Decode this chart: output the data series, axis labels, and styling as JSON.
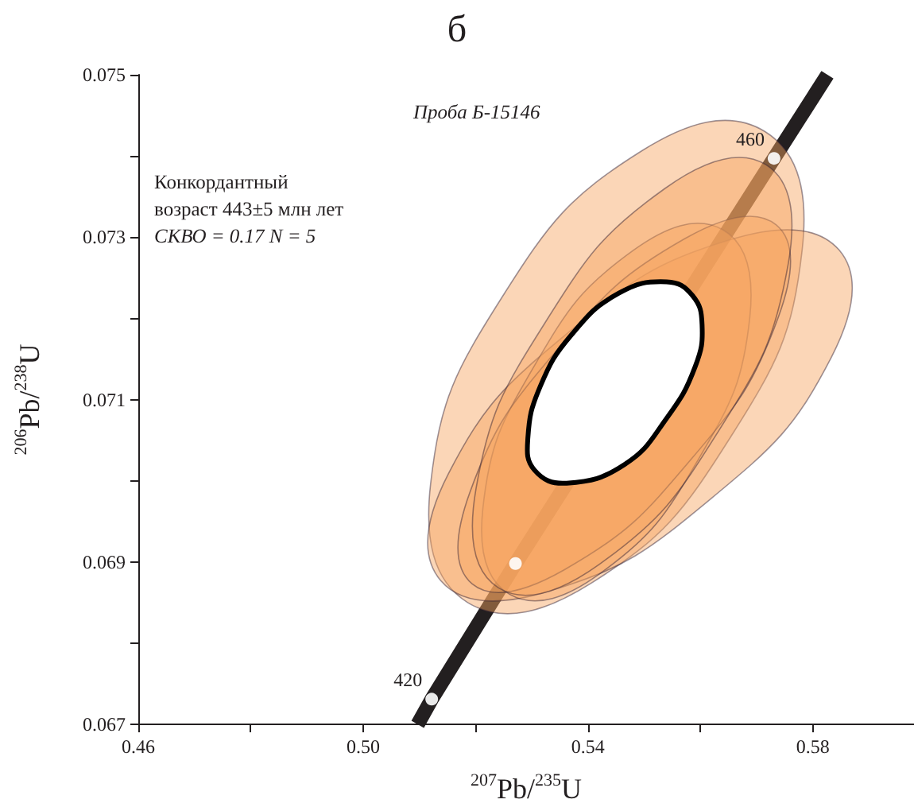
{
  "chart_data": {
    "type": "line",
    "title": "б",
    "xlabel": "$^{207}$Pb/$^{235}$U",
    "ylabel": "$^{206}$Pb/$^{238}$U",
    "annotations": [
      "Проба Б-15146",
      "Конкордантный\nвозраст 443±5 млн лет",
      "СКВО = 0.17 N = 5",
      {
        "text": "420",
        "x": 0.5122,
        "y": 0.06731
      },
      {
        "text": "460",
        "x": 0.5731,
        "y": 0.07397
      }
    ],
    "xlim": [
      0.46,
      0.598
    ],
    "ylim": [
      0.067,
      0.075
    ],
    "xticks": [
      0.46,
      {
        "value": 0.48,
        "label": null
      },
      {
        "value": 0.5,
        "label": "0.50"
      },
      {
        "value": 0.52,
        "label": null
      },
      0.54,
      {
        "value": 0.56,
        "label": null
      },
      0.58
    ],
    "yticks": [
      0.067,
      {
        "value": 0.068,
        "label": null
      },
      0.069,
      {
        "value": 0.07,
        "label": null
      },
      0.071,
      {
        "value": 0.072,
        "label": null
      },
      0.073,
      {
        "value": 0.074,
        "label": null
      },
      0.075
    ],
    "grid": false,
    "series": [
      {
        "color": "#231f20",
        "marker": "none",
        "x": [
          0.5097,
          0.5122,
          0.5271,
          0.5731,
          0.5826
        ],
        "values": [
          0.067,
          0.06731,
          0.06898,
          0.07397,
          0.075
        ]
      },
      {
        "type": "area",
        "color": "#f6a560",
        "x": [
          0.5715,
          0.5781,
          0.5653,
          0.5406,
          0.5186,
          0.512,
          0.5248,
          0.5495
        ],
        "values": [
          0.0743,
          0.07284,
          0.07053,
          0.06874,
          0.0685,
          0.06996,
          0.07227,
          0.07406
        ]
      },
      {
        "type": "area",
        "color": "#f6a560",
        "x": [
          0.5847,
          0.5833,
          0.5619,
          0.5331,
          0.5138,
          0.5152,
          0.5366,
          0.5654
        ],
        "values": [
          0.07284,
          0.07152,
          0.06978,
          0.06864,
          0.06877,
          0.07009,
          0.07183,
          0.07297
        ]
      },
      {
        "type": "area",
        "color": "#f6a560",
        "x": [
          0.564,
          0.5688,
          0.5597,
          0.542,
          0.5261,
          0.5213,
          0.5305,
          0.5481
        ],
        "values": [
          0.07309,
          0.07202,
          0.07027,
          0.06885,
          0.0686,
          0.06966,
          0.07142,
          0.07284
        ]
      },
      {
        "type": "area",
        "color": "#f6a560",
        "x": [
          0.5735,
          0.5739,
          0.5583,
          0.5357,
          0.5194,
          0.519,
          0.5346,
          0.5572
        ],
        "values": [
          0.07315,
          0.07202,
          0.07026,
          0.0689,
          0.06873,
          0.06986,
          0.07162,
          0.07298
        ]
      },
      {
        "type": "area",
        "color": "#f6a560",
        "x": [
          0.5717,
          0.5756,
          0.5633,
          0.542,
          0.5241,
          0.5201,
          0.5324,
          0.5537
        ],
        "values": [
          0.07389,
          0.07266,
          0.07062,
          0.06897,
          0.06868,
          0.06991,
          0.07195,
          0.0736
        ]
      },
      {
        "type": "area",
        "color": "#ffffff",
        "x": [
          0.554,
          0.5586,
          0.5603,
          0.5591,
          0.554,
          0.5465,
          0.5362,
          0.5305,
          0.5293,
          0.5315,
          0.5371,
          0.5455
        ],
        "values": [
          0.07245,
          0.07228,
          0.07192,
          0.07141,
          0.07077,
          0.0702,
          0.06997,
          0.07013,
          0.07052,
          0.07116,
          0.0718,
          0.07231
        ]
      },
      {
        "type": "scatter",
        "color": "#ffffff",
        "marker": "circle",
        "x": [
          0.5122,
          0.5271,
          0.5731
        ],
        "values": [
          0.06731,
          0.06898,
          0.07397
        ]
      }
    ]
  }
}
